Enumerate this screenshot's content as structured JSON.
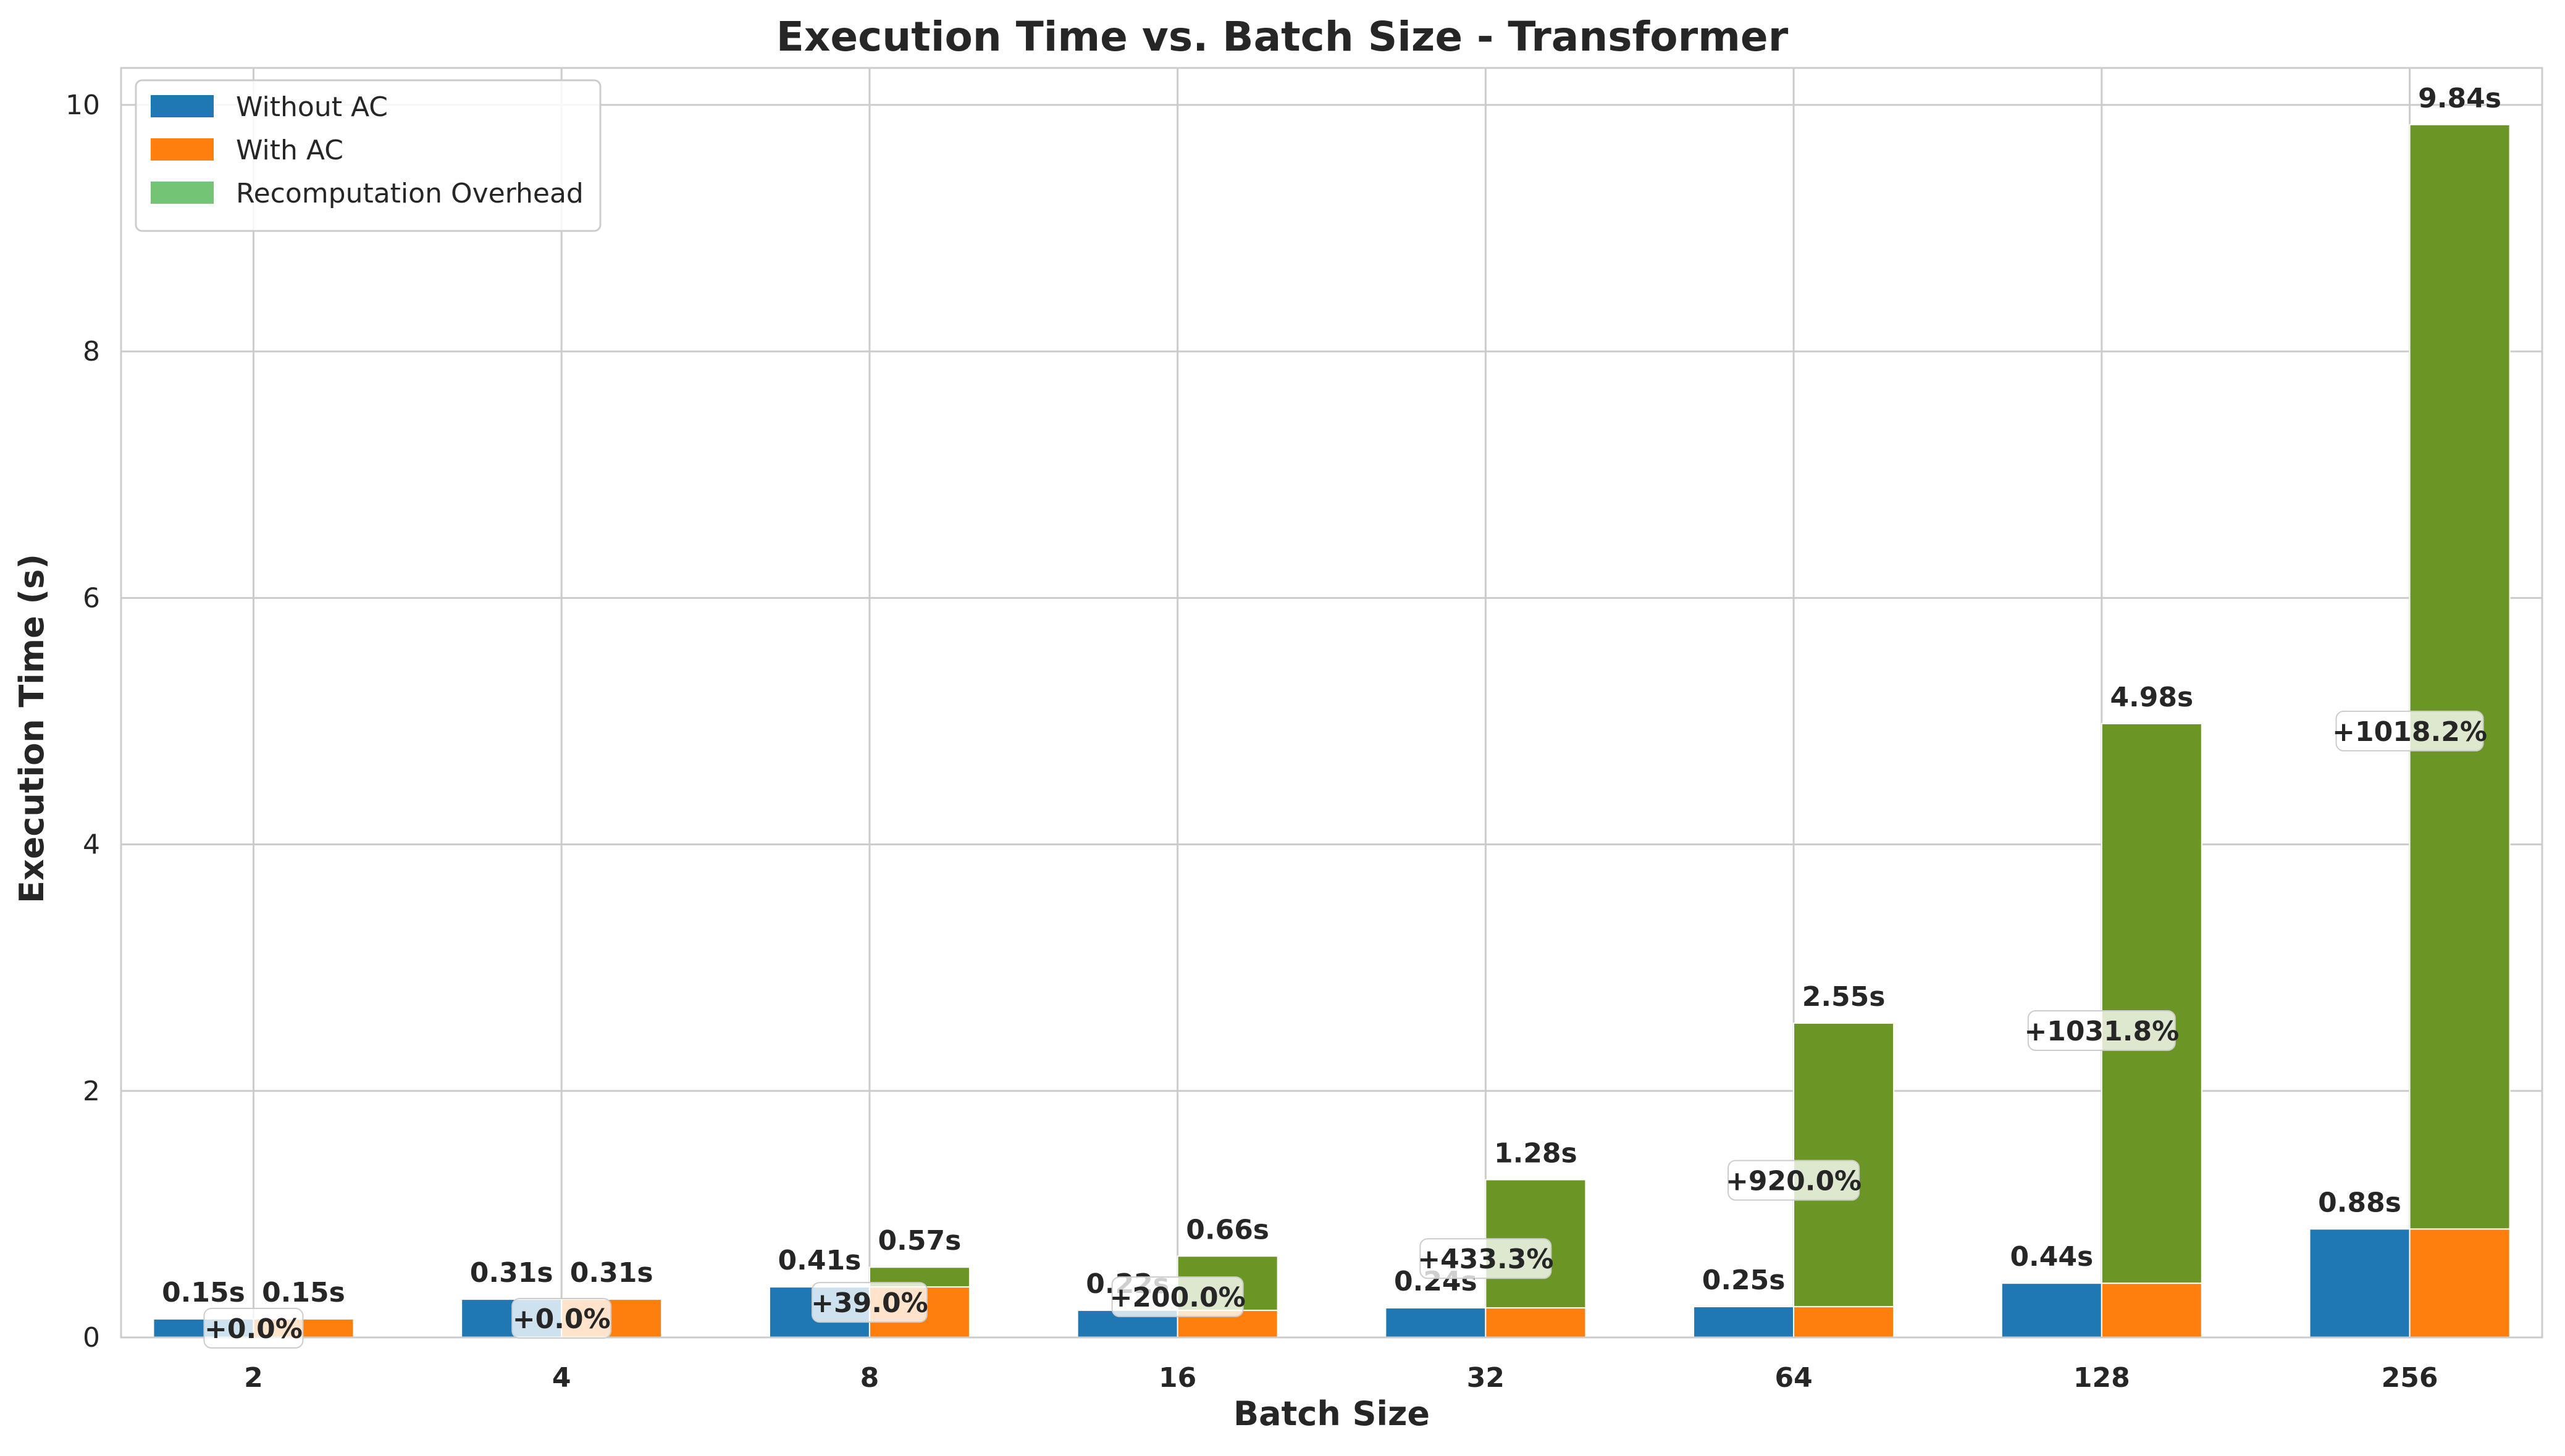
{
  "chart_data": {
    "type": "bar",
    "title": "Execution Time vs. Batch Size - Transformer",
    "xlabel": "Batch Size",
    "ylabel": "Execution Time (s)",
    "ylim": [
      0,
      10.3
    ],
    "yticks": [
      0,
      2,
      4,
      6,
      8,
      10
    ],
    "grid": true,
    "legend_position": "top-left",
    "categories": [
      "2",
      "4",
      "8",
      "16",
      "32",
      "64",
      "128",
      "256"
    ],
    "series": [
      {
        "name": "Without AC",
        "color": "#1f77b4",
        "values": [
          0.15,
          0.31,
          0.41,
          0.22,
          0.24,
          0.25,
          0.44,
          0.88
        ]
      },
      {
        "name": "With AC",
        "color": "#ff7f0e",
        "values": [
          0.15,
          0.31,
          0.41,
          0.22,
          0.24,
          0.25,
          0.44,
          0.88
        ]
      },
      {
        "name": "Recomputation Overhead",
        "color": "#74c476",
        "bar_color": "#6b9524",
        "values": [
          0.0,
          0.0,
          0.16,
          0.44,
          1.04,
          2.3,
          4.54,
          8.96
        ]
      }
    ],
    "without_ac_labels": [
      "0.15s",
      "0.31s",
      "0.41s",
      "0.22s",
      "0.24s",
      "0.25s",
      "0.44s",
      "0.88s"
    ],
    "with_ac_total_labels": [
      "0.15s",
      "0.31s",
      "0.57s",
      "0.66s",
      "1.28s",
      "2.55s",
      "4.98s",
      "9.84s"
    ],
    "overhead_percent_labels": [
      "+0.0%",
      "+0.0%",
      "+39.0%",
      "+200.0%",
      "+433.3%",
      "+920.0%",
      "+1031.8%",
      "+1018.2%"
    ]
  }
}
